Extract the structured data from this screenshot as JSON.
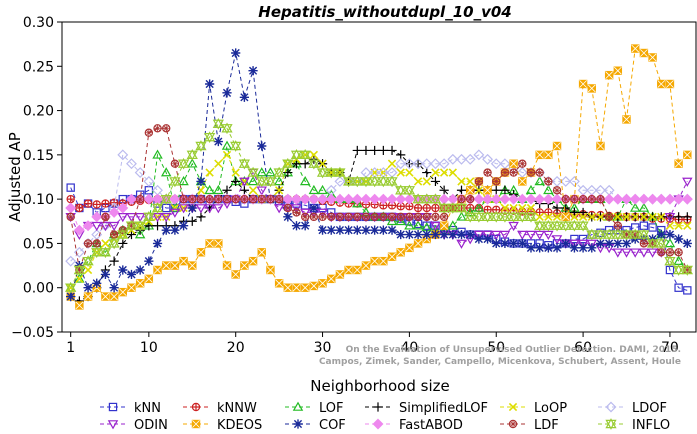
{
  "chart_data": {
    "type": "line",
    "title": "Hepatitis_withoutdupl_10_v04",
    "xlabel": "Neighborhood size",
    "ylabel": "Adjusted AP",
    "xlim": [
      0,
      73
    ],
    "ylim": [
      -0.05,
      0.3
    ],
    "xticks": [
      "1",
      "10",
      "20",
      "30",
      "40",
      "50",
      "60",
      "70"
    ],
    "yticks": [
      "−0.05",
      "0.00",
      "0.05",
      "0.10",
      "0.15",
      "0.20",
      "0.25",
      "0.30"
    ],
    "grid": false,
    "legend_position": "bottom",
    "credit": [
      "Campos, Zimek, Sander, Campello, Micenkova, Schubert, Assent, Houle",
      "On the Evaluation of Unsupervised Outlier Detection. DAMI, 2015."
    ],
    "x": [
      1,
      2,
      3,
      4,
      5,
      6,
      7,
      8,
      9,
      10,
      11,
      12,
      13,
      14,
      15,
      16,
      17,
      18,
      19,
      20,
      21,
      22,
      23,
      24,
      25,
      26,
      27,
      28,
      29,
      30,
      31,
      32,
      33,
      34,
      35,
      36,
      37,
      38,
      39,
      40,
      41,
      42,
      43,
      44,
      45,
      46,
      47,
      48,
      49,
      50,
      51,
      52,
      53,
      54,
      55,
      56,
      57,
      58,
      59,
      60,
      61,
      62,
      63,
      64,
      65,
      66,
      67,
      68,
      69,
      70,
      71,
      72
    ],
    "series": [
      {
        "name": "kNN",
        "color": "#3333cc",
        "marker": "square",
        "values": [
          0.113,
          0.09,
          0.095,
          0.085,
          0.09,
          0.095,
          0.1,
          0.1,
          0.105,
          0.11,
          0.095,
          0.09,
          0.09,
          0.1,
          0.1,
          0.1,
          0.095,
          0.1,
          0.1,
          0.097,
          0.095,
          0.1,
          0.1,
          0.1,
          0.098,
          0.095,
          0.095,
          0.093,
          0.09,
          0.09,
          0.085,
          0.08,
          0.08,
          0.08,
          0.08,
          0.08,
          0.08,
          0.08,
          0.078,
          0.075,
          0.072,
          0.07,
          0.07,
          0.068,
          0.065,
          0.063,
          0.06,
          0.06,
          0.06,
          0.055,
          0.052,
          0.05,
          0.05,
          0.05,
          0.05,
          0.048,
          0.05,
          0.05,
          0.055,
          0.055,
          0.06,
          0.062,
          0.065,
          0.065,
          0.065,
          0.068,
          0.07,
          0.068,
          0.065,
          0.02,
          0.0,
          -0.003
        ]
      },
      {
        "name": "kNNW",
        "color": "#cc2222",
        "marker": "circle-plus",
        "values": [
          0.1,
          0.09,
          0.095,
          0.094,
          0.095,
          0.096,
          0.095,
          0.097,
          0.098,
          0.099,
          0.1,
          0.1,
          0.1,
          0.1,
          0.1,
          0.1,
          0.1,
          0.1,
          0.1,
          0.1,
          0.1,
          0.1,
          0.1,
          0.1,
          0.1,
          0.1,
          0.1,
          0.1,
          0.1,
          0.098,
          0.097,
          0.096,
          0.095,
          0.095,
          0.094,
          0.094,
          0.093,
          0.093,
          0.092,
          0.092,
          0.09,
          0.09,
          0.09,
          0.09,
          0.09,
          0.09,
          0.09,
          0.09,
          0.088,
          0.088,
          0.087,
          0.087,
          0.086,
          0.086,
          0.085,
          0.085,
          0.084,
          0.084,
          0.083,
          0.083,
          0.082,
          0.082,
          0.081,
          0.081,
          0.08,
          0.08,
          0.08,
          0.078,
          0.078,
          0.078,
          0.077,
          0.077
        ]
      },
      {
        "name": "LOF",
        "color": "#22bb22",
        "marker": "triangle",
        "values": [
          0.0,
          0.01,
          0.03,
          0.05,
          0.04,
          0.06,
          0.065,
          0.07,
          0.06,
          0.07,
          0.15,
          0.13,
          0.09,
          0.12,
          0.14,
          0.12,
          0.11,
          0.11,
          0.16,
          0.12,
          0.12,
          0.12,
          0.13,
          0.13,
          0.12,
          0.13,
          0.14,
          0.12,
          0.11,
          0.11,
          0.105,
          0.1,
          0.1,
          0.095,
          0.085,
          0.08,
          0.08,
          0.075,
          0.075,
          0.07,
          0.07,
          0.068,
          0.065,
          0.065,
          0.07,
          0.08,
          0.085,
          0.09,
          0.1,
          0.1,
          0.11,
          0.11,
          0.1,
          0.11,
          0.12,
          0.11,
          0.1,
          0.09,
          0.09,
          0.1,
          0.1,
          0.1,
          0.08,
          0.08,
          0.1,
          0.09,
          0.09,
          0.08,
          0.06,
          0.05,
          0.03,
          0.02
        ]
      },
      {
        "name": "SimplifiedLOF",
        "color": "#000000",
        "marker": "plus",
        "values": [
          -0.01,
          -0.015,
          -0.01,
          0.0,
          0.02,
          0.03,
          0.05,
          0.06,
          0.065,
          0.07,
          0.07,
          0.07,
          0.07,
          0.075,
          0.075,
          0.08,
          0.09,
          0.1,
          0.11,
          0.12,
          0.11,
          0.1,
          0.1,
          0.1,
          0.11,
          0.13,
          0.14,
          0.14,
          0.145,
          0.14,
          0.13,
          0.13,
          0.12,
          0.155,
          0.155,
          0.155,
          0.155,
          0.155,
          0.15,
          0.14,
          0.14,
          0.13,
          0.12,
          0.11,
          0.1,
          0.11,
          0.11,
          0.11,
          0.11,
          0.11,
          0.11,
          0.105,
          0.1,
          0.1,
          0.095,
          0.095,
          0.09,
          0.09,
          0.085,
          0.085,
          0.08,
          0.08,
          0.08,
          0.08,
          0.08,
          0.08,
          0.08,
          0.08,
          0.08,
          0.08,
          0.08,
          0.08
        ]
      },
      {
        "name": "LoOP",
        "color": "#dddd00",
        "marker": "x",
        "values": [
          0.0,
          0.01,
          0.02,
          0.04,
          0.05,
          0.055,
          0.06,
          0.065,
          0.07,
          0.075,
          0.08,
          0.08,
          0.09,
          0.09,
          0.09,
          0.11,
          0.13,
          0.14,
          0.15,
          0.13,
          0.12,
          0.11,
          0.1,
          0.1,
          0.11,
          0.14,
          0.145,
          0.15,
          0.15,
          0.14,
          0.13,
          0.13,
          0.12,
          0.12,
          0.12,
          0.13,
          0.13,
          0.14,
          0.13,
          0.13,
          0.12,
          0.12,
          0.13,
          0.13,
          0.13,
          0.12,
          0.12,
          0.11,
          0.1,
          0.1,
          0.09,
          0.09,
          0.09,
          0.09,
          0.08,
          0.08,
          0.08,
          0.08,
          0.08,
          0.08,
          0.08,
          0.08,
          0.08,
          0.08,
          0.08,
          0.08,
          0.08,
          0.08,
          0.08,
          0.07,
          0.07,
          0.07
        ]
      },
      {
        "name": "LDOF",
        "color": "#bbbbee",
        "marker": "diamond",
        "values": [
          0.03,
          0.04,
          0.05,
          0.06,
          0.07,
          0.09,
          0.15,
          0.14,
          0.13,
          0.12,
          0.11,
          0.1,
          0.1,
          0.1,
          0.1,
          0.1,
          0.1,
          0.1,
          0.1,
          0.1,
          0.1,
          0.1,
          0.1,
          0.1,
          0.1,
          0.1,
          0.1,
          0.1,
          0.1,
          0.1,
          0.11,
          0.12,
          0.12,
          0.12,
          0.13,
          0.13,
          0.13,
          0.13,
          0.14,
          0.14,
          0.14,
          0.14,
          0.14,
          0.14,
          0.145,
          0.145,
          0.145,
          0.15,
          0.145,
          0.14,
          0.14,
          0.135,
          0.13,
          0.13,
          0.13,
          0.12,
          0.12,
          0.12,
          0.12,
          0.11,
          0.11,
          0.11,
          0.11,
          0.1,
          0.1,
          0.1,
          0.1,
          0.1,
          0.1,
          0.1,
          0.1,
          0.1
        ]
      },
      {
        "name": "ODIN",
        "color": "#9922cc",
        "marker": "triangle-down",
        "values": [
          0.08,
          0.06,
          0.07,
          0.07,
          0.07,
          0.07,
          0.08,
          0.08,
          0.08,
          0.08,
          0.08,
          0.08,
          0.085,
          0.09,
          0.09,
          0.09,
          0.09,
          0.09,
          0.095,
          0.1,
          0.12,
          0.13,
          0.11,
          0.1,
          0.09,
          0.09,
          0.09,
          0.085,
          0.085,
          0.085,
          0.08,
          0.08,
          0.08,
          0.08,
          0.08,
          0.08,
          0.08,
          0.08,
          0.08,
          0.08,
          0.08,
          0.08,
          0.07,
          0.06,
          0.06,
          0.05,
          0.055,
          0.06,
          0.06,
          0.06,
          0.06,
          0.07,
          0.06,
          0.06,
          0.06,
          0.06,
          0.055,
          0.05,
          0.05,
          0.05,
          0.05,
          0.045,
          0.045,
          0.04,
          0.04,
          0.04,
          0.04,
          0.04,
          0.04,
          0.08,
          0.1,
          0.12
        ]
      },
      {
        "name": "KDEOS",
        "color": "#f5a800",
        "marker": "square-x",
        "values": [
          -0.01,
          -0.02,
          -0.01,
          0.0,
          -0.01,
          -0.01,
          -0.005,
          0.0,
          0.005,
          0.01,
          0.02,
          0.025,
          0.025,
          0.03,
          0.025,
          0.04,
          0.05,
          0.05,
          0.025,
          0.015,
          0.025,
          0.03,
          0.04,
          0.02,
          0.005,
          0.0,
          0.0,
          0.0,
          0.002,
          0.005,
          0.01,
          0.015,
          0.02,
          0.02,
          0.025,
          0.03,
          0.03,
          0.035,
          0.04,
          0.045,
          0.05,
          0.055,
          0.06,
          0.07,
          0.09,
          0.1,
          0.11,
          0.12,
          0.11,
          0.12,
          0.13,
          0.14,
          0.12,
          0.13,
          0.15,
          0.15,
          0.16,
          0.08,
          0.1,
          0.23,
          0.225,
          0.16,
          0.24,
          0.245,
          0.19,
          0.27,
          0.265,
          0.26,
          0.23,
          0.23,
          0.14,
          0.15
        ]
      },
      {
        "name": "COF",
        "color": "#1a2a99",
        "marker": "asterisk",
        "values": [
          -0.01,
          0.025,
          0.0,
          0.005,
          0.015,
          0.0,
          0.02,
          0.015,
          0.02,
          0.03,
          0.05,
          0.065,
          0.065,
          0.07,
          0.09,
          0.12,
          0.23,
          0.165,
          0.22,
          0.265,
          0.215,
          0.245,
          0.16,
          0.1,
          0.1,
          0.08,
          0.07,
          0.07,
          0.09,
          0.065,
          0.065,
          0.065,
          0.065,
          0.065,
          0.065,
          0.065,
          0.065,
          0.065,
          0.06,
          0.06,
          0.06,
          0.06,
          0.06,
          0.06,
          0.06,
          0.06,
          0.06,
          0.055,
          0.055,
          0.05,
          0.05,
          0.05,
          0.05,
          0.045,
          0.045,
          0.045,
          0.045,
          0.05,
          0.045,
          0.045,
          0.045,
          0.05,
          0.05,
          0.05,
          0.05,
          0.055,
          0.055,
          0.055,
          0.06,
          0.06,
          0.055,
          0.05
        ]
      },
      {
        "name": "FastABOD",
        "color": "#ee88ee",
        "marker": "diamond-fill",
        "values": [
          0.09,
          0.065,
          0.07,
          0.08,
          0.08,
          0.085,
          0.09,
          0.1,
          0.1,
          0.1,
          0.1,
          0.1,
          0.1,
          0.1,
          0.1,
          0.1,
          0.1,
          0.1,
          0.1,
          0.1,
          0.1,
          0.1,
          0.1,
          0.1,
          0.1,
          0.1,
          0.1,
          0.1,
          0.1,
          0.1,
          0.1,
          0.1,
          0.1,
          0.1,
          0.1,
          0.1,
          0.1,
          0.1,
          0.1,
          0.1,
          0.1,
          0.1,
          0.1,
          0.1,
          0.1,
          0.1,
          0.1,
          0.1,
          0.1,
          0.1,
          0.1,
          0.1,
          0.1,
          0.1,
          0.1,
          0.1,
          0.1,
          0.1,
          0.1,
          0.1,
          0.1,
          0.1,
          0.1,
          0.1,
          0.1,
          0.1,
          0.1,
          0.1,
          0.1,
          0.1,
          0.1,
          0.1
        ]
      },
      {
        "name": "LDF",
        "color": "#aa3333",
        "marker": "circle-cross",
        "values": [
          0.08,
          0.02,
          0.05,
          0.05,
          0.08,
          0.06,
          0.065,
          0.07,
          0.1,
          0.175,
          0.18,
          0.18,
          0.14,
          0.1,
          0.1,
          0.1,
          0.1,
          0.1,
          0.1,
          0.1,
          0.1,
          0.1,
          0.1,
          0.1,
          0.1,
          0.09,
          0.085,
          0.08,
          0.08,
          0.08,
          0.08,
          0.08,
          0.08,
          0.08,
          0.08,
          0.08,
          0.08,
          0.08,
          0.08,
          0.08,
          0.08,
          0.08,
          0.08,
          0.08,
          0.09,
          0.1,
          0.1,
          0.12,
          0.13,
          0.12,
          0.13,
          0.13,
          0.14,
          0.13,
          0.13,
          0.12,
          0.11,
          0.1,
          0.1,
          0.1,
          0.1,
          0.1,
          0.08,
          0.07,
          0.06,
          0.06,
          0.05,
          0.05,
          0.04,
          0.04,
          0.04,
          0.02
        ]
      },
      {
        "name": "INFLO",
        "color": "#99cc33",
        "marker": "star",
        "values": [
          0.0,
          0.02,
          0.03,
          0.04,
          0.04,
          0.05,
          0.06,
          0.07,
          0.07,
          0.08,
          0.09,
          0.1,
          0.12,
          0.14,
          0.15,
          0.16,
          0.17,
          0.185,
          0.18,
          0.16,
          0.14,
          0.13,
          0.12,
          0.12,
          0.13,
          0.14,
          0.15,
          0.15,
          0.14,
          0.13,
          0.13,
          0.13,
          0.12,
          0.12,
          0.12,
          0.12,
          0.12,
          0.12,
          0.11,
          0.11,
          0.1,
          0.1,
          0.1,
          0.09,
          0.09,
          0.09,
          0.08,
          0.08,
          0.08,
          0.08,
          0.08,
          0.08,
          0.08,
          0.08,
          0.07,
          0.07,
          0.07,
          0.07,
          0.07,
          0.07,
          0.06,
          0.06,
          0.06,
          0.06,
          0.06,
          0.06,
          0.06,
          0.05,
          0.05,
          0.03,
          0.02,
          0.02
        ]
      }
    ]
  }
}
